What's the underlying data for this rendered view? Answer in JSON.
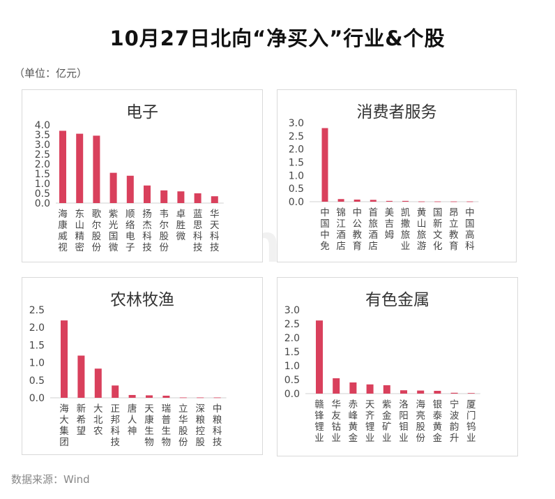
{
  "title": "10月27日北向“净买入”行业&个股",
  "unit": "（单位：亿元）",
  "source": "数据来源：Wind",
  "watermark": "Win.d",
  "bar_color": "#D9405C",
  "chart_data": [
    {
      "type": "bar",
      "title": "电子",
      "categories": [
        "海康威视",
        "东山精密",
        "歌尔股份",
        "紫光国微",
        "顺络电子",
        "扬杰科技",
        "韦尔股份",
        "卓胜微",
        "蓝思科技",
        "华天科技"
      ],
      "values": [
        3.7,
        3.55,
        3.45,
        1.55,
        1.4,
        0.9,
        0.65,
        0.6,
        0.5,
        0.35
      ],
      "yticks": [
        "0.0",
        "0.5",
        "1.0",
        "1.5",
        "2.0",
        "2.5",
        "3.0",
        "3.5",
        "4.0"
      ],
      "ylim": [
        0,
        4
      ]
    },
    {
      "type": "bar",
      "title": "消费者服务",
      "categories": [
        "中国中免",
        "锦江酒店",
        "中公教育",
        "首旅酒店",
        "美吉姆",
        "凯撒旅业",
        "黄山旅游",
        "国新文化",
        "昂立教育",
        "中国高科"
      ],
      "values": [
        2.8,
        0.1,
        0.08,
        0.07,
        0.03,
        0.03,
        0.01,
        0.01,
        0.01,
        0.01
      ],
      "yticks": [
        "0.0",
        "0.5",
        "1.0",
        "1.5",
        "2.0",
        "2.5",
        "3.0"
      ],
      "ylim": [
        0,
        3
      ]
    },
    {
      "type": "bar",
      "title": "农林牧渔",
      "categories": [
        "海大集团",
        "新希望",
        "大北农",
        "正邦科技",
        "唐人神",
        "天康生物",
        "瑞普生物",
        "立华股份",
        "深粮控股",
        "中粮科技"
      ],
      "values": [
        2.2,
        1.2,
        0.83,
        0.35,
        0.08,
        0.07,
        0.06,
        0.01,
        0.01,
        0.01
      ],
      "yticks": [
        "0.0",
        "0.5",
        "1.0",
        "1.5",
        "2.0",
        "2.5"
      ],
      "ylim": [
        0,
        2.5
      ]
    },
    {
      "type": "bar",
      "title": "有色金属",
      "categories": [
        "赣锋锂业",
        "华友钴业",
        "赤峰黄金",
        "天齐锂业",
        "紫金矿业",
        "洛阳钼业",
        "海亮股份",
        "银泰黄金",
        "宁波韵升",
        "厦门钨业"
      ],
      "values": [
        2.62,
        0.55,
        0.4,
        0.33,
        0.3,
        0.12,
        0.11,
        0.1,
        0.03,
        0.02
      ],
      "yticks": [
        "0.0",
        "0.5",
        "1.0",
        "1.5",
        "2.0",
        "2.5",
        "3.0"
      ],
      "ylim": [
        0,
        3
      ]
    }
  ]
}
